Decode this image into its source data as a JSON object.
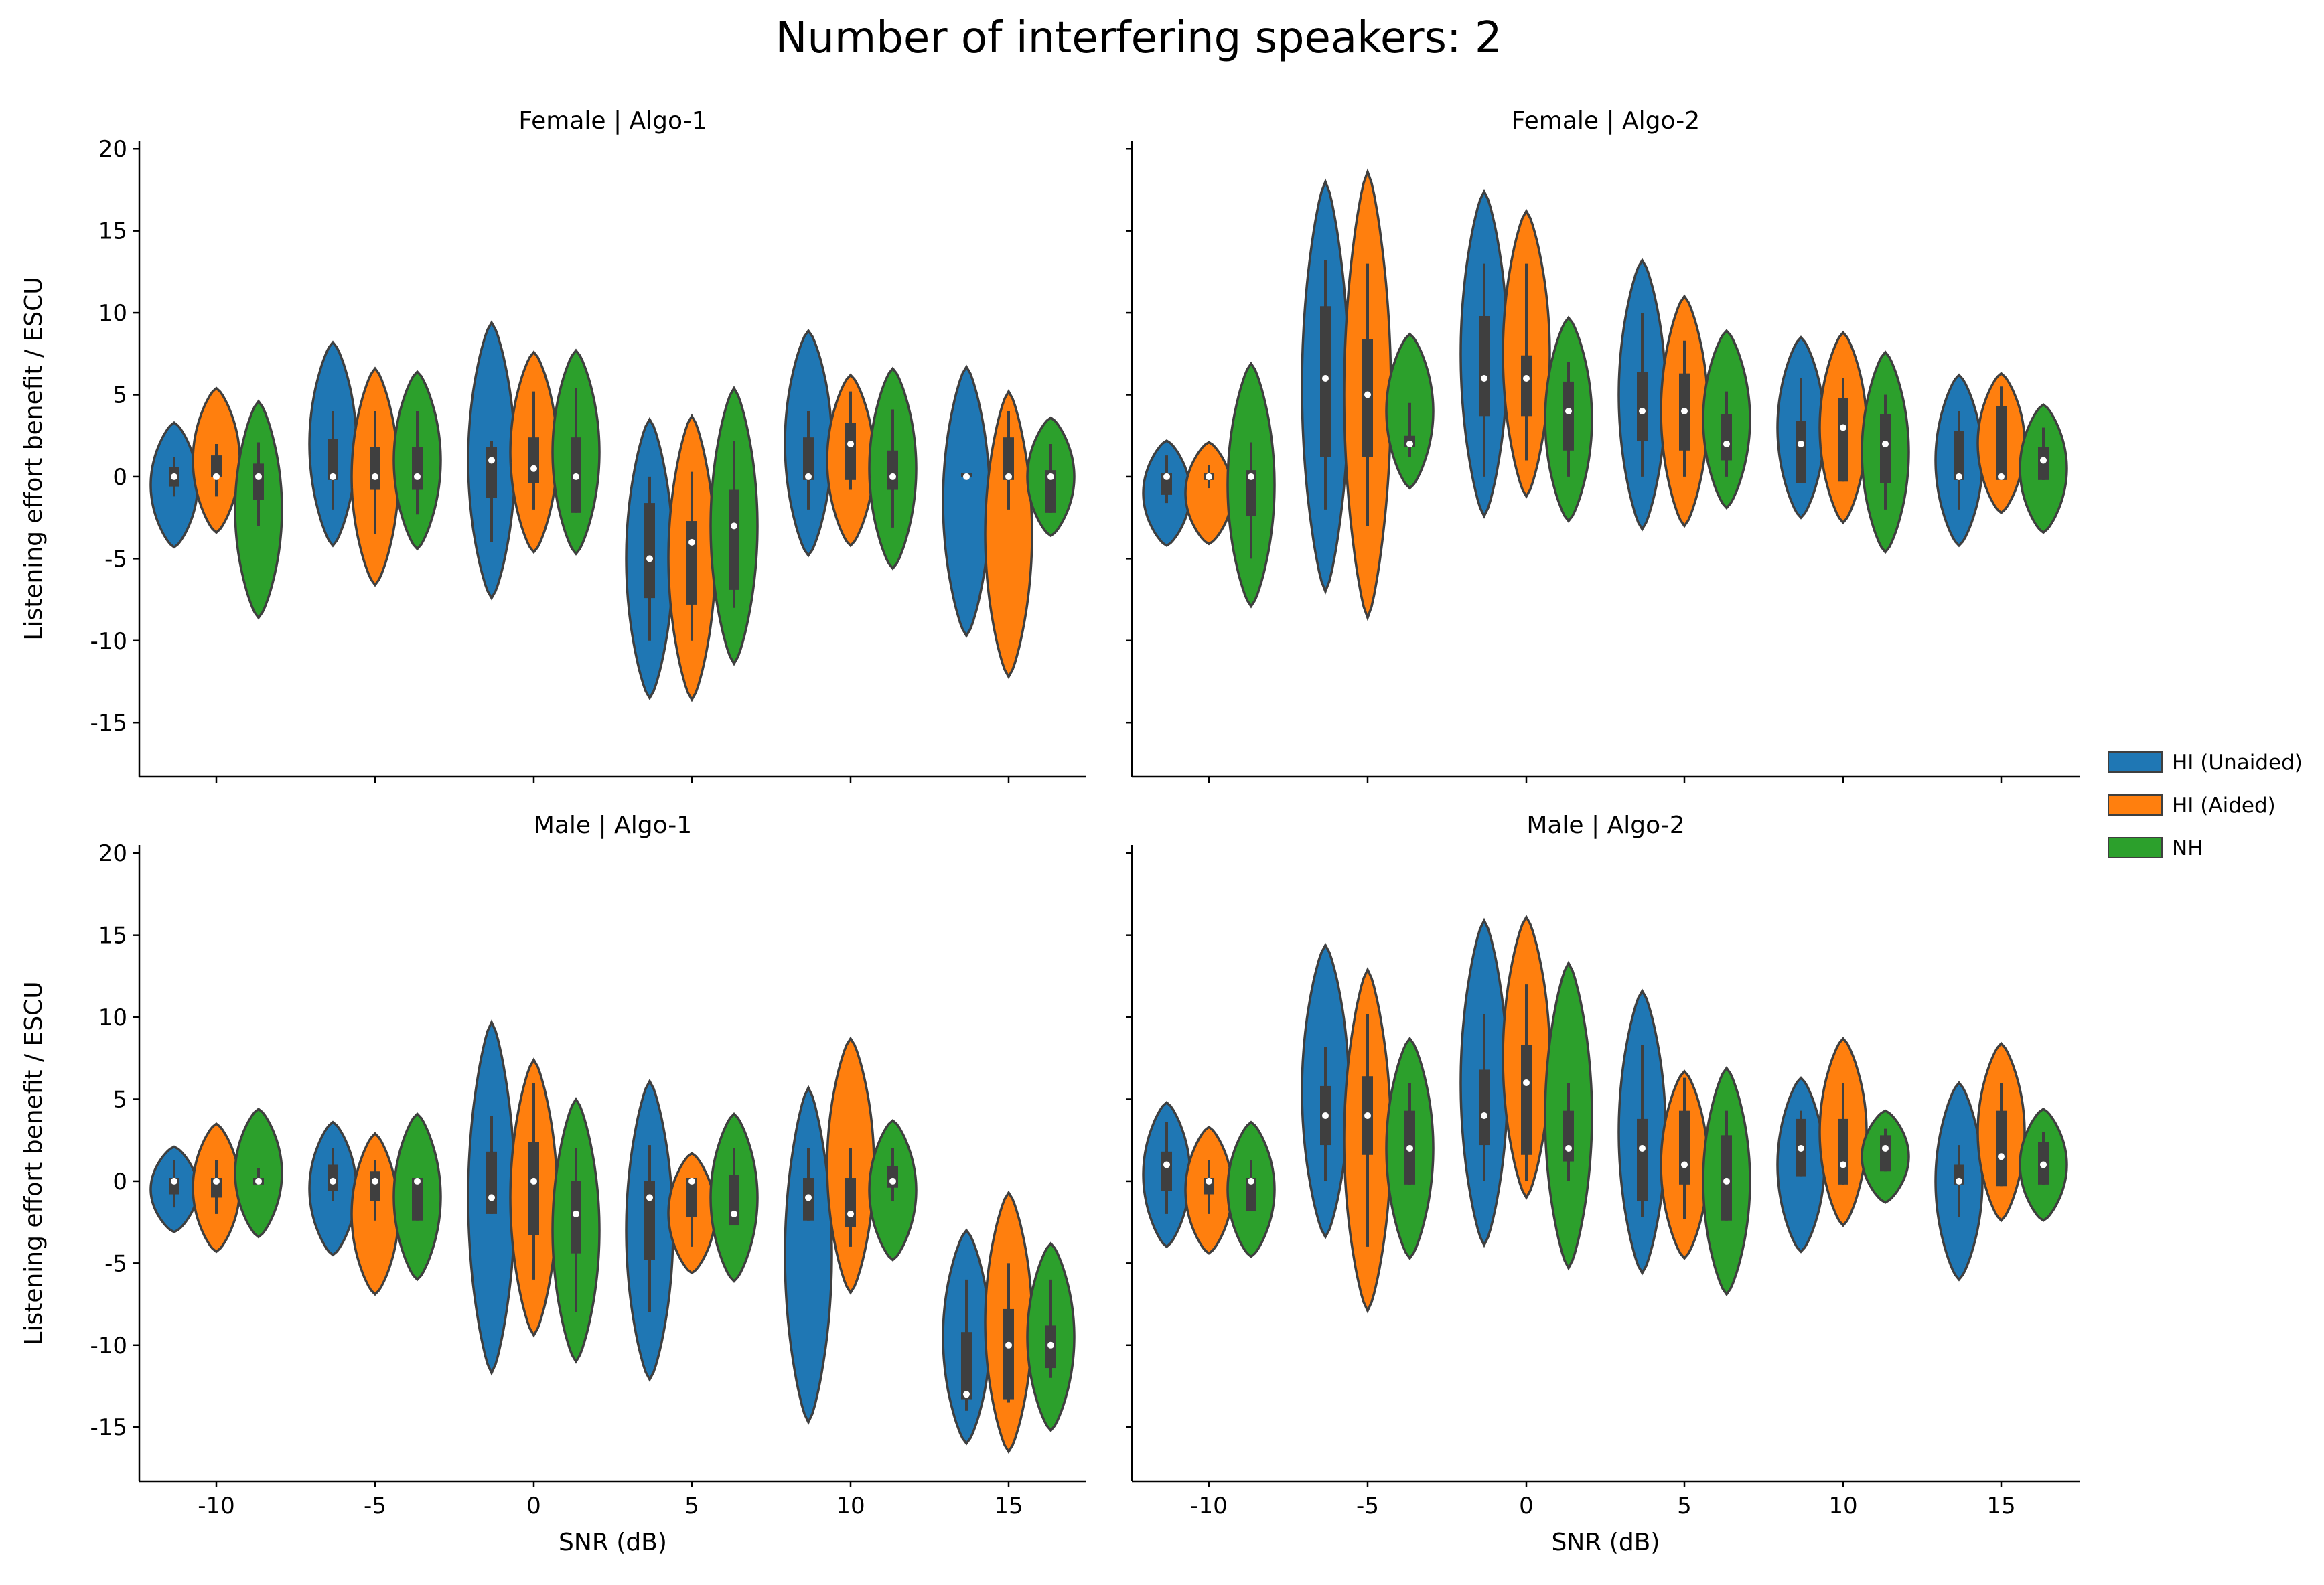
{
  "title": "Number of interfering speakers: 2",
  "chart_data": {
    "type": "violin",
    "title": "Number of interfering speakers: 2",
    "xlabel": "SNR (dB)",
    "ylabel": "Listening effort benefit / ESCU",
    "categories": [
      "-10",
      "-5",
      "0",
      "5",
      "10",
      "15"
    ],
    "yticks": [
      "20",
      "15",
      "10",
      "5",
      "0",
      "-5",
      "-10",
      "-15"
    ],
    "ylim": [
      -18.3,
      20.5
    ],
    "legend_position": "right",
    "series": [
      {
        "name": "HI (Unaided)",
        "color": "#1f77b4"
      },
      {
        "name": "HI (Aided)",
        "color": "#ff7f0e"
      },
      {
        "name": "NH",
        "color": "#2ca02c"
      }
    ],
    "panels": [
      {
        "title": "Female | Algo-1",
        "groups": [
          [
            {
              "min": -4.3,
              "max": 3.3,
              "q1": -0.6,
              "q3": 0.6,
              "median": 0,
              "wlo": -1.2,
              "whi": 1.2
            },
            {
              "min": -3.4,
              "max": 5.4,
              "q1": 0,
              "q3": 1.3,
              "median": 0,
              "wlo": -1.2,
              "whi": 2
            },
            {
              "min": -8.6,
              "max": 4.6,
              "q1": -1.4,
              "q3": 0.8,
              "median": 0,
              "wlo": -3,
              "whi": 2.1
            }
          ],
          [
            {
              "min": -4.2,
              "max": 8.2,
              "q1": -0.2,
              "q3": 2.3,
              "median": 0,
              "wlo": -2,
              "whi": 4
            },
            {
              "min": -6.6,
              "max": 6.6,
              "q1": -0.8,
              "q3": 1.8,
              "median": 0,
              "wlo": -3.5,
              "whi": 4
            },
            {
              "min": -4.4,
              "max": 6.4,
              "q1": -0.8,
              "q3": 1.8,
              "median": 0,
              "wlo": -2.3,
              "whi": 4
            }
          ],
          [
            {
              "min": -7.4,
              "max": 9.4,
              "q1": -1.3,
              "q3": 1.8,
              "median": 1,
              "wlo": -4,
              "whi": 2.2
            },
            {
              "min": -4.6,
              "max": 7.6,
              "q1": -0.4,
              "q3": 2.4,
              "median": 0.5,
              "wlo": -2,
              "whi": 5.2
            },
            {
              "min": -4.7,
              "max": 7.7,
              "q1": -2.2,
              "q3": 2.4,
              "median": 0,
              "wlo": -2.2,
              "whi": 5.4
            }
          ],
          [
            {
              "min": -13.5,
              "max": 3.5,
              "q1": -7.4,
              "q3": -1.6,
              "median": -5,
              "wlo": -10,
              "whi": 0
            },
            {
              "min": -13.6,
              "max": 3.7,
              "q1": -7.8,
              "q3": -2.7,
              "median": -4,
              "wlo": -10,
              "whi": 0.3
            },
            {
              "min": -11.4,
              "max": 5.4,
              "q1": -6.9,
              "q3": -0.8,
              "median": -3,
              "wlo": -8,
              "whi": 2.2
            }
          ],
          [
            {
              "min": -4.8,
              "max": 8.9,
              "q1": -0.2,
              "q3": 2.4,
              "median": 0,
              "wlo": -2,
              "whi": 4
            },
            {
              "min": -4.2,
              "max": 6.2,
              "q1": -0.2,
              "q3": 3.3,
              "median": 2,
              "wlo": -0.8,
              "whi": 5.2
            },
            {
              "min": -5.6,
              "max": 6.6,
              "q1": -0.8,
              "q3": 1.6,
              "median": 0,
              "wlo": -3.1,
              "whi": 4.1
            }
          ],
          [
            {
              "min": -9.7,
              "max": 6.7,
              "q1": 0,
              "q3": 0.2,
              "median": 0,
              "wlo": -0.2,
              "whi": 0.2
            },
            {
              "min": -12.2,
              "max": 5.2,
              "q1": -0.2,
              "q3": 2.4,
              "median": 0,
              "wlo": -2,
              "whi": 4
            },
            {
              "min": -3.6,
              "max": 3.6,
              "q1": -2.2,
              "q3": 0.4,
              "median": 0,
              "wlo": -2.2,
              "whi": 2
            }
          ]
        ]
      },
      {
        "title": "Female | Algo-2",
        "groups": [
          [
            {
              "min": -4.2,
              "max": 2.2,
              "q1": -1.1,
              "q3": 0.2,
              "median": 0,
              "wlo": -1.6,
              "whi": 1.3
            },
            {
              "min": -4.1,
              "max": 2.1,
              "q1": -0.2,
              "q3": 0.2,
              "median": 0,
              "wlo": -0.7,
              "whi": 0.7
            },
            {
              "min": -7.9,
              "max": 6.9,
              "q1": -2.4,
              "q3": 0.4,
              "median": 0,
              "wlo": -5,
              "whi": 2.1
            }
          ],
          [
            {
              "min": -7,
              "max": 18,
              "q1": 1.2,
              "q3": 10.4,
              "median": 6,
              "wlo": -2,
              "whi": 13.2
            },
            {
              "min": -8.6,
              "max": 18.6,
              "q1": 1.2,
              "q3": 8.4,
              "median": 5,
              "wlo": -3,
              "whi": 13
            },
            {
              "min": -0.7,
              "max": 8.7,
              "q1": 1.8,
              "q3": 2.5,
              "median": 2,
              "wlo": 1.2,
              "whi": 4.5
            }
          ],
          [
            {
              "min": -2.4,
              "max": 17.4,
              "q1": 3.7,
              "q3": 9.8,
              "median": 6,
              "wlo": 0,
              "whi": 13
            },
            {
              "min": -1.2,
              "max": 16.2,
              "q1": 3.7,
              "q3": 7.4,
              "median": 6,
              "wlo": 1,
              "whi": 13
            },
            {
              "min": -2.7,
              "max": 9.7,
              "q1": 1.6,
              "q3": 5.8,
              "median": 4,
              "wlo": 0,
              "whi": 7
            }
          ],
          [
            {
              "min": -3.2,
              "max": 13.2,
              "q1": 2.2,
              "q3": 6.4,
              "median": 4,
              "wlo": 0,
              "whi": 10
            },
            {
              "min": -3,
              "max": 11,
              "q1": 1.6,
              "q3": 6.3,
              "median": 4,
              "wlo": 0,
              "whi": 8.3
            },
            {
              "min": -1.9,
              "max": 8.9,
              "q1": 1,
              "q3": 3.8,
              "median": 2,
              "wlo": 0,
              "whi": 5.2
            }
          ],
          [
            {
              "min": -2.5,
              "max": 8.5,
              "q1": -0.4,
              "q3": 3.4,
              "median": 2,
              "wlo": -0.4,
              "whi": 6
            },
            {
              "min": -2.8,
              "max": 8.8,
              "q1": -0.3,
              "q3": 4.8,
              "median": 3,
              "wlo": -0.3,
              "whi": 6
            },
            {
              "min": -4.6,
              "max": 7.6,
              "q1": -0.4,
              "q3": 3.8,
              "median": 2,
              "wlo": -2,
              "whi": 5
            }
          ],
          [
            {
              "min": -4.2,
              "max": 6.2,
              "q1": -0.2,
              "q3": 2.8,
              "median": 0,
              "wlo": -2,
              "whi": 4
            },
            {
              "min": -2.2,
              "max": 6.3,
              "q1": -0.2,
              "q3": 4.3,
              "median": 0,
              "wlo": -0.2,
              "whi": 5.5
            },
            {
              "min": -3.4,
              "max": 4.4,
              "q1": -0.2,
              "q3": 1.8,
              "median": 1,
              "wlo": -0.2,
              "whi": 3
            }
          ]
        ]
      },
      {
        "title": "Male | Algo-1",
        "groups": [
          [
            {
              "min": -3.1,
              "max": 2.1,
              "q1": -0.8,
              "q3": 0.2,
              "median": 0,
              "wlo": -1.6,
              "whi": 1.3
            },
            {
              "min": -4.3,
              "max": 3.5,
              "q1": -1,
              "q3": 0.2,
              "median": 0,
              "wlo": -2,
              "whi": 1.3
            },
            {
              "min": -3.4,
              "max": 4.4,
              "q1": -0.2,
              "q3": 0.2,
              "median": 0,
              "wlo": -0.2,
              "whi": 0.8
            }
          ],
          [
            {
              "min": -4.5,
              "max": 3.6,
              "q1": -0.6,
              "q3": 1,
              "median": 0,
              "wlo": -1.2,
              "whi": 2
            },
            {
              "min": -6.9,
              "max": 2.9,
              "q1": -1.2,
              "q3": 0.6,
              "median": 0,
              "wlo": -2.4,
              "whi": 1.3
            },
            {
              "min": -6,
              "max": 4.1,
              "q1": -2.4,
              "q3": 0.2,
              "median": 0,
              "wlo": -2.4,
              "whi": 0.2
            }
          ],
          [
            {
              "min": -11.7,
              "max": 9.7,
              "q1": -2,
              "q3": 1.8,
              "median": -1,
              "wlo": -2,
              "whi": 4
            },
            {
              "min": -9.4,
              "max": 7.4,
              "q1": -3.3,
              "q3": 2.4,
              "median": 0,
              "wlo": -6,
              "whi": 6
            },
            {
              "min": -11,
              "max": 5,
              "q1": -4.4,
              "q3": 0,
              "median": -2,
              "wlo": -8,
              "whi": 2
            }
          ],
          [
            {
              "min": -12.1,
              "max": 6.1,
              "q1": -4.8,
              "q3": 0,
              "median": -1,
              "wlo": -8,
              "whi": 2.2
            },
            {
              "min": -5.6,
              "max": 1.7,
              "q1": -2.2,
              "q3": 0.2,
              "median": 0,
              "wlo": -4,
              "whi": 0.2
            },
            {
              "min": -6.1,
              "max": 4.1,
              "q1": -2.7,
              "q3": 0.4,
              "median": -2,
              "wlo": -2.7,
              "whi": 2
            }
          ],
          [
            {
              "min": -14.7,
              "max": 5.7,
              "q1": -2.4,
              "q3": 0.2,
              "median": -1,
              "wlo": -2.4,
              "whi": 2
            },
            {
              "min": -6.8,
              "max": 8.7,
              "q1": -2.8,
              "q3": 0.2,
              "median": -2,
              "wlo": -4,
              "whi": 2
            },
            {
              "min": -4.8,
              "max": 3.7,
              "q1": -0.4,
              "q3": 0.9,
              "median": 0,
              "wlo": -1.2,
              "whi": 2
            }
          ],
          [
            {
              "min": -16,
              "max": -3,
              "q1": -13.3,
              "q3": -9.2,
              "median": -13,
              "wlo": -14,
              "whi": -6
            },
            {
              "min": -16.5,
              "max": -0.7,
              "q1": -13.3,
              "q3": -7.8,
              "median": -10,
              "wlo": -13.5,
              "whi": -5
            },
            {
              "min": -15.2,
              "max": -3.8,
              "q1": -11.4,
              "q3": -8.8,
              "median": -10,
              "wlo": -12,
              "whi": -6
            }
          ]
        ]
      },
      {
        "title": "Male | Algo-2",
        "groups": [
          [
            {
              "min": -4,
              "max": 4.8,
              "q1": -0.6,
              "q3": 1.8,
              "median": 1,
              "wlo": -2,
              "whi": 3.6
            },
            {
              "min": -4.4,
              "max": 3.3,
              "q1": -0.8,
              "q3": 0.2,
              "median": 0,
              "wlo": -2,
              "whi": 1.3
            },
            {
              "min": -4.6,
              "max": 3.6,
              "q1": -1.8,
              "q3": 0.2,
              "median": 0,
              "wlo": -1.8,
              "whi": 1.3
            }
          ],
          [
            {
              "min": -3.4,
              "max": 14.4,
              "q1": 2.2,
              "q3": 5.8,
              "median": 4,
              "wlo": 0,
              "whi": 8.2
            },
            {
              "min": -7.9,
              "max": 12.9,
              "q1": 1.6,
              "q3": 6.4,
              "median": 4,
              "wlo": -4,
              "whi": 10.2
            },
            {
              "min": -4.7,
              "max": 8.7,
              "q1": -0.2,
              "q3": 4.3,
              "median": 2,
              "wlo": -0.2,
              "whi": 6
            }
          ],
          [
            {
              "min": -3.9,
              "max": 15.9,
              "q1": 2.2,
              "q3": 6.8,
              "median": 4,
              "wlo": 0,
              "whi": 10.2
            },
            {
              "min": -1,
              "max": 16.1,
              "q1": 1.6,
              "q3": 8.3,
              "median": 6,
              "wlo": 0,
              "whi": 12
            },
            {
              "min": -5.3,
              "max": 13.3,
              "q1": 1.2,
              "q3": 4.3,
              "median": 2,
              "wlo": 0,
              "whi": 6
            }
          ],
          [
            {
              "min": -5.6,
              "max": 11.6,
              "q1": -1.2,
              "q3": 3.8,
              "median": 2,
              "wlo": -2.2,
              "whi": 8.3
            },
            {
              "min": -4.7,
              "max": 6.7,
              "q1": -0.2,
              "q3": 4.3,
              "median": 1,
              "wlo": -2.3,
              "whi": 6.3
            },
            {
              "min": -6.9,
              "max": 6.9,
              "q1": -2.4,
              "q3": 2.8,
              "median": 0,
              "wlo": -2.4,
              "whi": 4.3
            }
          ],
          [
            {
              "min": -4.3,
              "max": 6.3,
              "q1": 0.3,
              "q3": 3.8,
              "median": 2,
              "wlo": 0.3,
              "whi": 4.3
            },
            {
              "min": -2.7,
              "max": 8.7,
              "q1": -0.2,
              "q3": 3.8,
              "median": 1,
              "wlo": -0.2,
              "whi": 6
            },
            {
              "min": -1.3,
              "max": 4.3,
              "q1": 0.6,
              "q3": 2.8,
              "median": 2,
              "wlo": 0.6,
              "whi": 3.2
            }
          ],
          [
            {
              "min": -6,
              "max": 6,
              "q1": -0.2,
              "q3": 1,
              "median": 0,
              "wlo": -2.2,
              "whi": 2.2
            },
            {
              "min": -2.4,
              "max": 8.4,
              "q1": -0.3,
              "q3": 4.3,
              "median": 1.5,
              "wlo": -0.3,
              "whi": 6
            },
            {
              "min": -2.4,
              "max": 4.4,
              "q1": -0.2,
              "q3": 2.4,
              "median": 1,
              "wlo": -0.2,
              "whi": 3
            }
          ]
        ]
      }
    ]
  }
}
